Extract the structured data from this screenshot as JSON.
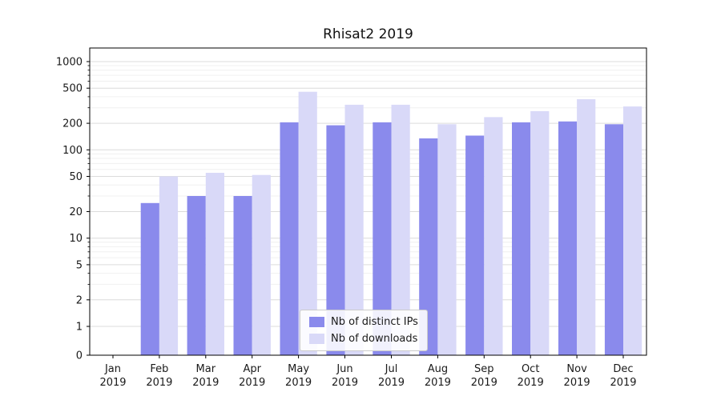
{
  "chart_data": {
    "type": "bar",
    "title": "Rhisat2 2019",
    "y_scale": "symlog",
    "grid": "horizontal",
    "legend_position": "lower center",
    "categories": [
      "Jan",
      "Feb",
      "Mar",
      "Apr",
      "May",
      "Jun",
      "Jul",
      "Aug",
      "Sep",
      "Oct",
      "Nov",
      "Dec"
    ],
    "year_label": "2019",
    "y_ticks": [
      0,
      1,
      2,
      5,
      10,
      20,
      50,
      100,
      200,
      500,
      1000
    ],
    "y_minor_ticks": [
      3,
      4,
      6,
      7,
      8,
      9,
      30,
      40,
      60,
      70,
      80,
      90,
      300,
      400,
      600,
      700,
      800,
      900
    ],
    "ylim": [
      0,
      1400
    ],
    "series": [
      {
        "name": "Nb of distinct IPs",
        "key": "distinct-ips",
        "color": "#8a8aec",
        "values": [
          0,
          25,
          30,
          30,
          205,
          190,
          205,
          135,
          145,
          205,
          210,
          195
        ]
      },
      {
        "name": "Nb of downloads",
        "key": "downloads",
        "color": "#d9d9f8",
        "values": [
          0,
          50,
          55,
          52,
          455,
          325,
          325,
          195,
          235,
          275,
          375,
          310
        ]
      }
    ],
    "colors": {
      "grid_major": "#dcdcdc",
      "grid_minor": "#f0f0f0",
      "axis": "#000000",
      "text": "#1a1a1a"
    }
  }
}
